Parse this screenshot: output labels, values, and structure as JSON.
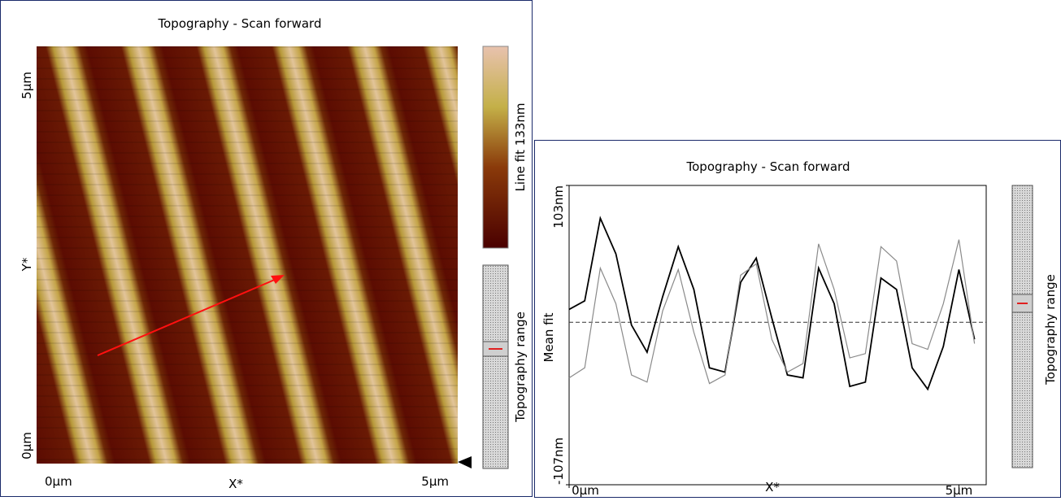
{
  "left_panel": {
    "title": "Topography - Scan forward",
    "y_ticks": [
      "5µm",
      "0µm"
    ],
    "y_label": "Y*",
    "x_ticks": [
      "0µm",
      "5µm"
    ],
    "x_label": "X*",
    "colorbar_label": "Line fit 133nm",
    "range_label": "Topography range"
  },
  "chart_data": {
    "type": "line",
    "title": "Topography - Scan forward",
    "x": [
      0,
      0.2,
      0.4,
      0.6,
      0.8,
      1.0,
      1.2,
      1.4,
      1.6,
      1.8,
      2.0,
      2.2,
      2.4,
      2.6,
      2.8,
      3.0,
      3.2,
      3.4,
      3.6,
      3.8,
      4.0,
      4.2,
      4.4,
      4.6,
      4.8,
      5.0,
      5.2
    ],
    "series": [
      {
        "color": "#000000",
        "values": [
          16,
          22,
          80,
          55,
          5,
          -14,
          25,
          60,
          30,
          -25,
          -28,
          35,
          52,
          10,
          -30,
          -32,
          45,
          20,
          -38,
          -35,
          38,
          30,
          -25,
          -40,
          -10,
          44,
          -5
        ]
      },
      {
        "color": "#8a8a8a",
        "values": [
          -32,
          -25,
          45,
          20,
          -30,
          -35,
          15,
          44,
          0,
          -36,
          -30,
          40,
          48,
          -5,
          -28,
          -22,
          62,
          30,
          -18,
          -15,
          60,
          50,
          -8,
          -12,
          20,
          65,
          -8
        ]
      }
    ],
    "xlim": [
      0,
      5.35
    ],
    "ylim": [
      -107,
      103
    ],
    "xticks": [
      {
        "value": 0,
        "label": "0µm"
      },
      {
        "value": 5,
        "label": "5µm"
      }
    ],
    "yticks": [
      {
        "value": -107,
        "label": "-107nm"
      },
      {
        "value": 103,
        "label": "103nm"
      }
    ],
    "xlabel": "X*",
    "ylabel": "Mean fit",
    "mean_fit": 7,
    "range_label": "Topography range"
  }
}
